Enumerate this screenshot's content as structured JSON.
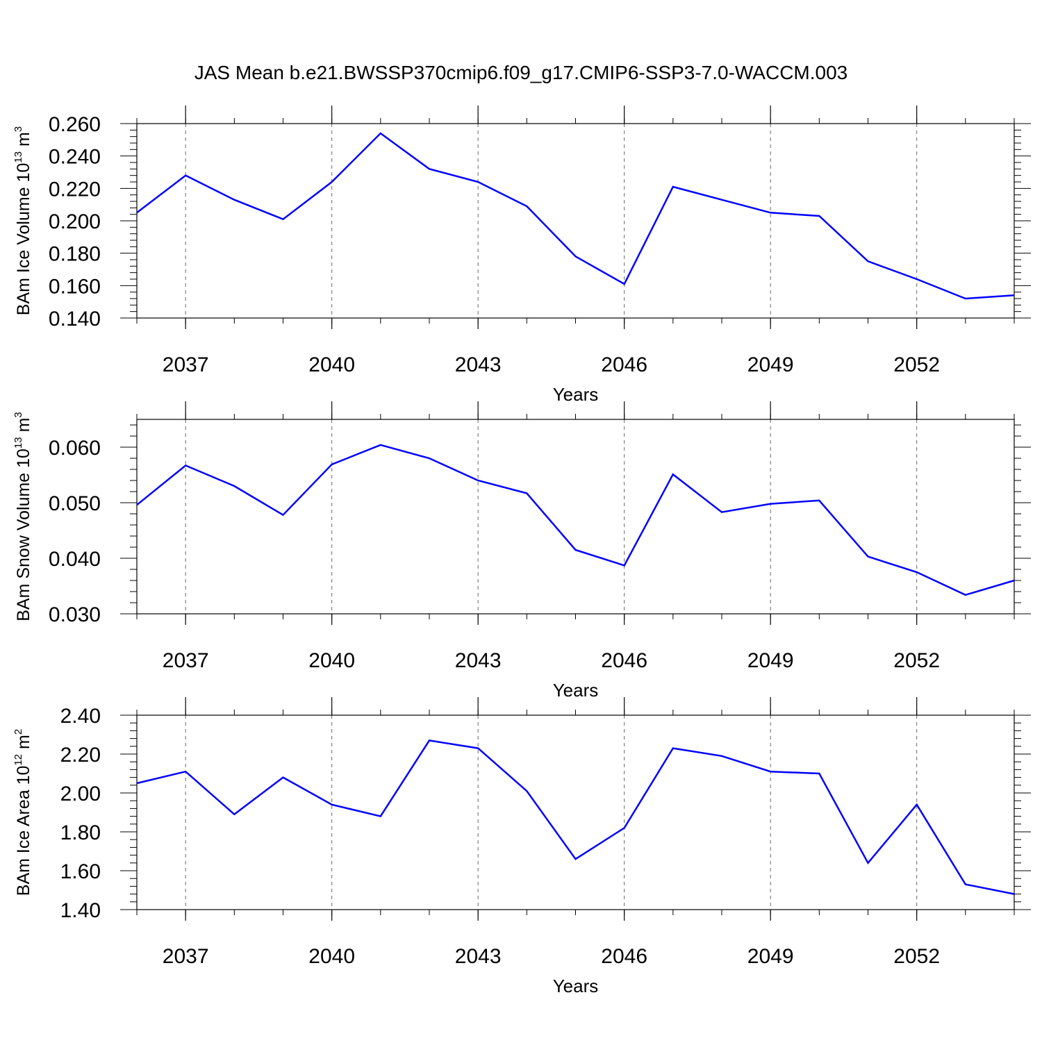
{
  "title": "JAS Mean b.e21.BWSSP370cmip6.f09_g17.CMIP6-SSP3-7.0-WACCM.003",
  "chart_data": [
    {
      "type": "line",
      "ylabel": {
        "prefix": "BAm Ice Volume 10",
        "exp": "13",
        "unit": " m",
        "unit_exp": "3"
      },
      "xlabel": "Years",
      "xlim": [
        2036,
        2054
      ],
      "xticks": [
        "2037",
        "2040",
        "2043",
        "2046",
        "2049",
        "2052"
      ],
      "ylim": [
        0.14,
        0.26
      ],
      "yticks": [
        "0.140",
        "0.160",
        "0.180",
        "0.200",
        "0.220",
        "0.240",
        "0.260"
      ],
      "color": "#0000ff",
      "x": [
        2036,
        2037,
        2038,
        2039,
        2040,
        2041,
        2042,
        2043,
        2044,
        2045,
        2046,
        2047,
        2048,
        2049,
        2050,
        2051,
        2052,
        2053,
        2054
      ],
      "values": [
        0.205,
        0.228,
        0.213,
        0.201,
        0.224,
        0.254,
        0.232,
        0.224,
        0.209,
        0.178,
        0.161,
        0.221,
        0.213,
        0.205,
        0.203,
        0.175,
        0.164,
        0.152,
        0.154
      ]
    },
    {
      "type": "line",
      "ylabel": {
        "prefix": "BAm Snow Volume 10",
        "exp": "13",
        "unit": " m",
        "unit_exp": "3"
      },
      "xlabel": "Years",
      "xlim": [
        2036,
        2054
      ],
      "xticks": [
        "2037",
        "2040",
        "2043",
        "2046",
        "2049",
        "2052"
      ],
      "ylim": [
        0.03,
        0.065
      ],
      "yticks": [
        "0.030",
        "0.040",
        "0.050",
        "0.060"
      ],
      "color": "#0000ff",
      "x": [
        2036,
        2037,
        2038,
        2039,
        2040,
        2041,
        2042,
        2043,
        2044,
        2045,
        2046,
        2047,
        2048,
        2049,
        2050,
        2051,
        2052,
        2053,
        2054
      ],
      "values": [
        0.0496,
        0.0567,
        0.053,
        0.0478,
        0.0569,
        0.0604,
        0.058,
        0.054,
        0.0517,
        0.0415,
        0.0387,
        0.0551,
        0.0483,
        0.0498,
        0.0504,
        0.0403,
        0.0375,
        0.0334,
        0.036
      ]
    },
    {
      "type": "line",
      "ylabel": {
        "prefix": "BAm Ice Area 10",
        "exp": "12",
        "unit": " m",
        "unit_exp": "2"
      },
      "xlabel": "Years",
      "xlim": [
        2036,
        2054
      ],
      "xticks": [
        "2037",
        "2040",
        "2043",
        "2046",
        "2049",
        "2052"
      ],
      "ylim": [
        1.4,
        2.4
      ],
      "yticks": [
        "1.40",
        "1.60",
        "1.80",
        "2.00",
        "2.20",
        "2.40"
      ],
      "color": "#0000ff",
      "x": [
        2036,
        2037,
        2038,
        2039,
        2040,
        2041,
        2042,
        2043,
        2044,
        2045,
        2046,
        2047,
        2048,
        2049,
        2050,
        2051,
        2052,
        2053,
        2054
      ],
      "values": [
        2.05,
        2.11,
        1.89,
        2.08,
        1.94,
        1.88,
        2.27,
        2.23,
        2.01,
        1.66,
        1.82,
        2.23,
        2.19,
        2.11,
        2.1,
        1.64,
        1.94,
        1.53,
        1.48
      ]
    }
  ]
}
